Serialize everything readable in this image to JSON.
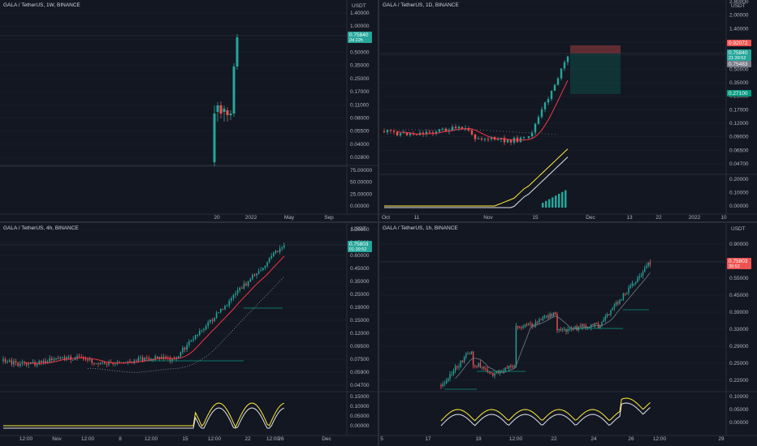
{
  "panes": [
    {
      "symbol": "GALA / TetherUS, 1W, BINANCE",
      "unit": "USDT",
      "price_axis": [
        "1.40000",
        "1.00000",
        "0.70000",
        "0.50000",
        "0.35000",
        "0.25000",
        "0.17000",
        "0.11000",
        "0.08000",
        "0.05500",
        "0.04000",
        "0.02800"
      ],
      "sub_axis": [
        "75.00000",
        "50.00000",
        "25.00000",
        "0.00000"
      ],
      "time_axis": [
        "20",
        "2022",
        "May",
        "Sep"
      ],
      "tags": [
        {
          "price": "0.75840",
          "sub": "2d 22h",
          "color": "#26a69a"
        }
      ]
    },
    {
      "symbol": "GALA / TetherUS, 1D, BINANCE",
      "unit": "USDT",
      "price_axis": [
        "2.80000",
        "2.00000",
        "1.40000",
        "1.00000",
        "0.70000",
        "0.50000",
        "0.35000",
        "0.25000",
        "0.17000",
        "0.12000",
        "0.09000",
        "0.06500",
        "0.04700"
      ],
      "sub_axis": [
        "0.20000",
        "0.10000",
        "0.00000"
      ],
      "time_axis": [
        "Oct",
        "11",
        "Nov",
        "15",
        "Dec",
        "13",
        "22",
        "2022",
        "10"
      ],
      "tags": [
        {
          "price": "0.92072",
          "sub": "",
          "color": "#ef5350"
        },
        {
          "price": "0.75840",
          "sub": "21:39:52",
          "color": "#26a69a"
        },
        {
          "price": "0.75483",
          "sub": "",
          "color": "#787b86"
        },
        {
          "price": "0.27100",
          "sub": "",
          "color": "#089981"
        }
      ]
    },
    {
      "symbol": "GALA / TetherUS, 4h, BINANCE",
      "unit": "USDT",
      "price_axis": [
        "1.20000",
        "0.85000",
        "0.60000",
        "0.45000",
        "0.35000",
        "0.25000",
        "0.19000",
        "0.15000",
        "0.12000",
        "0.09500",
        "0.07500",
        "0.05900",
        "0.04700"
      ],
      "sub_axis": [
        "0.15000",
        "0.10000",
        "0.05000",
        "0.00000"
      ],
      "time_axis": [
        "12:00",
        "Nov",
        "12:00",
        "8",
        "12:00",
        "15",
        "12:00",
        "22",
        "12:00",
        "26",
        "Dec"
      ],
      "tags": [
        {
          "price": "0.75803",
          "sub": "01:39:52",
          "color": "#26a69a"
        }
      ]
    },
    {
      "symbol": "GALA / TetherUS, 1h, BINANCE",
      "unit": "USDT",
      "price_axis": [
        "0.90000",
        "0.65000",
        "0.55000",
        "0.45000",
        "0.39000",
        "0.33000",
        "0.29000",
        "0.25000",
        "0.22000"
      ],
      "sub_axis": [
        "0.10000",
        "0.05000",
        "0.00000"
      ],
      "time_axis": [
        "5",
        "17",
        "19",
        "12:00",
        "22",
        "24",
        "26",
        "12:00",
        "29"
      ],
      "tags": [
        {
          "price": "0.75803",
          "sub": "39:52",
          "color": "#ef5350"
        }
      ]
    }
  ],
  "colors": {
    "up": "#26a69a",
    "down": "#ef5350",
    "grid": "#1e222d",
    "bg": "#131722",
    "ma_red": "#f23645",
    "signal": "#ffeb3b",
    "white": "#e0e3eb",
    "green_level": "#089981"
  }
}
